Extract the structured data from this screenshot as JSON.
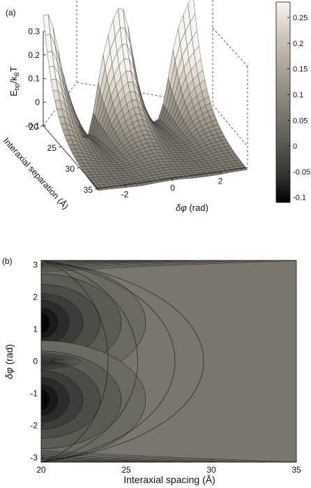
{
  "chart_data": [
    {
      "panel_label": "(a)",
      "type": "surface",
      "zlabel_main": "E",
      "zlabel_sub1": "bp",
      "zlabel_mid": "/k",
      "zlabel_sub2": "B",
      "zlabel_end": "T",
      "ylabel_text": "Interaxial separation (",
      "ylabel_unit": "Å",
      "ylabel_close": ")",
      "xlabel_sym": "δφ",
      "xlabel_unit": " (rad)",
      "zticks": [
        "0.3",
        "0.2",
        "0.1",
        "0",
        "-0.1"
      ],
      "zlim": [
        -0.1,
        0.3
      ],
      "yticks": [
        "20",
        "25",
        "30",
        "35"
      ],
      "ylim": [
        20,
        35
      ],
      "xticks": [
        "-2",
        "0",
        "2"
      ],
      "xlim": [
        -3.14,
        3.14
      ],
      "colorbar": {
        "ticks": [
          "0.25",
          "0.2",
          "0.15",
          "0.1",
          "0.05",
          "0",
          "-0.05",
          "-0.1"
        ],
        "values": [
          0.25,
          0.2,
          0.15,
          0.1,
          0.05,
          0,
          -0.05,
          -0.1
        ],
        "range": [
          -0.11,
          0.28
        ],
        "colormap": [
          "#000000",
          "#4a4a45",
          "#7c786e",
          "#a39c8f",
          "#c6beb0",
          "#e4ddd2",
          "#f7f3ee"
        ]
      }
    },
    {
      "panel_label": "(b)",
      "type": "contour",
      "xlabel_text": "Interaxial spacing (",
      "xlabel_unit": "Å",
      "xlabel_close": ")",
      "ylabel_sym": "δφ",
      "ylabel_unit": " (rad)",
      "xticks": [
        "20",
        "25",
        "30",
        "35"
      ],
      "xlim": [
        20,
        35
      ],
      "yticks": [
        "3",
        "2",
        "1",
        "0",
        "-1",
        "-2",
        "-3"
      ],
      "ylim": [
        -3.14,
        3.14
      ],
      "minima": [
        [
          20,
          1.2
        ],
        [
          20,
          -1.2
        ]
      ]
    }
  ]
}
